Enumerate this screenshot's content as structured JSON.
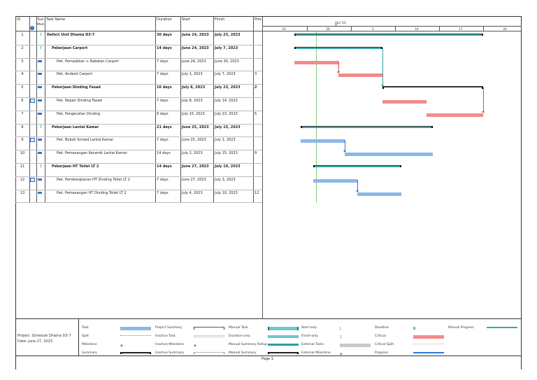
{
  "columns": {
    "id": "ID",
    "indicators": "i",
    "mode": "Task Mode",
    "name": "Task Name",
    "duration": "Duration",
    "start": "Start",
    "finish": "Finish",
    "pred": "Predecessors"
  },
  "timescale": {
    "month": "Jul '23",
    "weeks": [
      "19",
      "26",
      "3",
      "10",
      "17",
      "24"
    ]
  },
  "status_date": "June 27, 2023",
  "tasks": [
    {
      "id": "1",
      "name": "Defect Unit Dhama D3-7",
      "duration": "30 days",
      "start": "June 24, 2023",
      "finish": "July 23, 2023",
      "pred": "",
      "bold": true,
      "level": 0,
      "mode": "pin-icon",
      "note": false,
      "bar_style": "summary-rollup"
    },
    {
      "id": "2",
      "name": "Pekerjaan Carport",
      "duration": "14 days",
      "start": "June 24, 2023",
      "finish": "July 7, 2023",
      "pred": "",
      "bold": true,
      "level": 1,
      "mode": "pin-icon",
      "note": false,
      "bar_style": "summary-rollup"
    },
    {
      "id": "3",
      "name": "Pek. Pemadatan + Rabatan Carport",
      "duration": "7 days",
      "start": "June 24, 2023",
      "finish": "June 30, 2023",
      "pred": "",
      "bold": false,
      "level": 2,
      "mode": "manual-task-icon",
      "note": false,
      "bar_style": "critical"
    },
    {
      "id": "4",
      "name": "Pek. Andesit Carport",
      "duration": "7 days",
      "start": "July 1, 2023",
      "finish": "July 7, 2023",
      "pred": "3",
      "bold": false,
      "level": 2,
      "mode": "manual-task-icon",
      "note": false,
      "bar_style": "critical"
    },
    {
      "id": "5",
      "name": "Pekerjaan Dinding Fasad",
      "duration": "16 days",
      "start": "July 8, 2023",
      "finish": "July 23, 2023",
      "pred": "2",
      "bold": true,
      "level": 1,
      "mode": "manual-task-icon",
      "note": false,
      "bar_style": "manual-summary"
    },
    {
      "id": "6",
      "name": "Pek. Repair Dinding Fasad",
      "duration": "7 days",
      "start": "July 8, 2023",
      "finish": "July 14, 2023",
      "pred": "",
      "bold": false,
      "level": 2,
      "mode": "manual-task-icon",
      "note": true,
      "bar_style": "critical"
    },
    {
      "id": "7",
      "name": "Pek. Pengecatan Dinding",
      "duration": "9 days",
      "start": "July 15, 2023",
      "finish": "July 23, 2023",
      "pred": "5",
      "bold": false,
      "level": 2,
      "mode": "manual-task-icon",
      "note": false,
      "bar_style": "critical"
    },
    {
      "id": "8",
      "name": "Pekerjaan Lantai Kamar",
      "duration": "21 days",
      "start": "June 25, 2023",
      "finish": "July 15, 2023",
      "pred": "",
      "bold": true,
      "level": 1,
      "mode": "pin-icon",
      "note": false,
      "bar_style": "summary-rollup"
    },
    {
      "id": "9",
      "name": "Pek. Bobok Screed Lantai Kamar",
      "duration": "7 days",
      "start": "June 25, 2023",
      "finish": "July 1, 2023",
      "pred": "",
      "bold": false,
      "level": 2,
      "mode": "manual-task-icon",
      "note": true,
      "bar_style": "task"
    },
    {
      "id": "10",
      "name": "Pek. Pemasangan Keramik Lantai Kamar",
      "duration": "14 days",
      "start": "July 2, 2023",
      "finish": "July 15, 2023",
      "pred": "9",
      "bold": false,
      "level": 2,
      "mode": "manual-task-icon",
      "note": false,
      "bar_style": "task"
    },
    {
      "id": "11",
      "name": "Pekerjaan HT Toilet LT 2",
      "duration": "14 days",
      "start": "June 27, 2023",
      "finish": "July 10, 2023",
      "pred": "",
      "bold": true,
      "level": 1,
      "mode": "pin-icon",
      "note": false,
      "bar_style": "summary-rollup"
    },
    {
      "id": "12",
      "name": "Pek. Pembongkaran HT Dinding Toilet LT 2",
      "duration": "7 days",
      "start": "June 27, 2023",
      "finish": "July 3, 2023",
      "pred": "",
      "bold": false,
      "level": 2,
      "mode": "manual-task-icon",
      "note": true,
      "bar_style": "task"
    },
    {
      "id": "13",
      "name": "Pek. Pemasangan HT Dinding Toilet LT 2",
      "duration": "7 days",
      "start": "July 4, 2023",
      "finish": "July 10, 2023",
      "pred": "12",
      "bold": false,
      "level": 2,
      "mode": "manual-task-icon",
      "note": false,
      "bar_style": "task"
    }
  ],
  "footer": {
    "project": "Project: Schedule Dhama D3-7",
    "date": "Date: June 27, 2023",
    "page": "Page 1",
    "legend": [
      [
        "Task",
        "Project Summary",
        "Manual Task",
        "Start-only",
        "Deadline",
        "Manual Progress"
      ],
      [
        "Split",
        "Inactive Task",
        "Duration-only",
        "Finish-only",
        "Critical",
        ""
      ],
      [
        "Milestone",
        "Inactive Milestone",
        "Manual Summary Rollup",
        "External Tasks",
        "Critical Split",
        ""
      ],
      [
        "Summary",
        "Inactive Summary",
        "Manual Summary",
        "External Milestone",
        "Progress",
        ""
      ]
    ]
  },
  "colors": {
    "task": "#8ab8e8",
    "critical": "#f28b8b",
    "rollup": "#3aa5a8",
    "progress": "#2b7bd4",
    "today": "#7ccf7c"
  }
}
